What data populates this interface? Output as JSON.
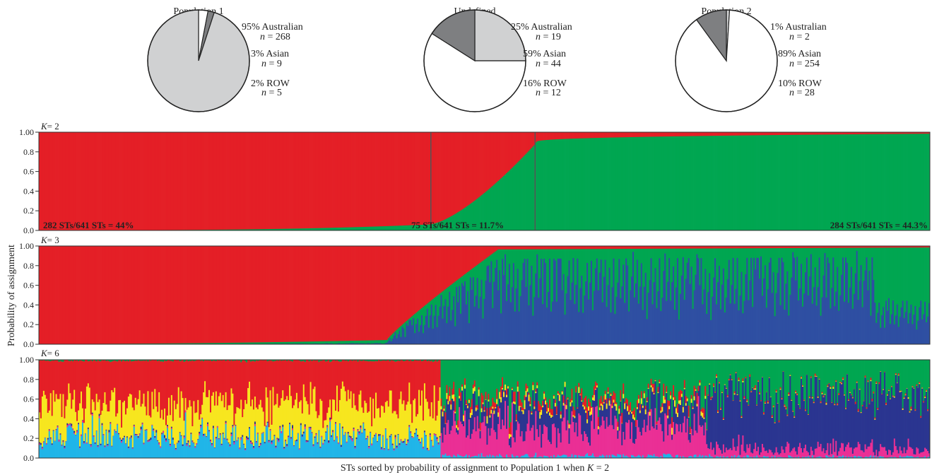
{
  "colors": {
    "australian": "#d0d1d2",
    "asian": "#ffffff",
    "row": "#7e7f81",
    "pop1": "#e41f26",
    "pop2": "#00a651",
    "blue": "#2e4fa2",
    "cyan": "#20b5e8",
    "yellow": "#f7e61f",
    "magenta": "#ea2f95",
    "navy": "#2a3590",
    "gray": "#8a8c8e"
  },
  "pies": [
    {
      "title": "Population 1",
      "slices": [
        {
          "label": "95% Australian",
          "n": "= 268",
          "percent": 95,
          "category": "Australian"
        },
        {
          "label": "3% Asian",
          "n": "= 9",
          "percent": 3,
          "category": "Asian"
        },
        {
          "label": "2% ROW",
          "n": "= 5",
          "percent": 2,
          "category": "ROW"
        }
      ]
    },
    {
      "title": "Undefined",
      "slices": [
        {
          "label": "25% Australian",
          "n": "= 19",
          "percent": 25,
          "category": "Australian"
        },
        {
          "label": "59% Asian",
          "n": "= 44",
          "percent": 59,
          "category": "Asian"
        },
        {
          "label": "16% ROW",
          "n": "= 12",
          "percent": 16,
          "category": "ROW"
        }
      ]
    },
    {
      "title": "Population 2",
      "slices": [
        {
          "label": "1% Australian",
          "n": "= 2",
          "percent": 1,
          "category": "Australian"
        },
        {
          "label": "89% Asian",
          "n": "= 254",
          "percent": 89,
          "category": "Asian"
        },
        {
          "label": "10% ROW",
          "n": "= 28",
          "percent": 10,
          "category": "ROW"
        }
      ]
    }
  ],
  "n_symbol": "n",
  "k_prefix": "K",
  "y_ticks": [
    "0.0",
    "0.2",
    "0.4",
    "0.6",
    "0.8",
    "1.00"
  ],
  "ylabel": "Probability of assignment",
  "xlabel_prefix": "STs sorted by probability of assignment to Population 1 when",
  "xlabel_suffix": "= 2",
  "chart_data": [
    {
      "type": "bar",
      "panel": "K= 2",
      "k": 2,
      "n_sts": 641,
      "stacked": true,
      "ylim": [
        0,
        1
      ],
      "series": [
        {
          "name": "",
          "color": "#e41f26",
          "sorted_values_sample": [
            1.0,
            0.99,
            0.97,
            0.95,
            0.92,
            0.7,
            0.5,
            0.3,
            0.1,
            0.07,
            0.05,
            0.04,
            0.03,
            0.02
          ]
        },
        {
          "name": "",
          "color": "#00a651",
          "sorted_values_sample": [
            0.0,
            0.01,
            0.03,
            0.05,
            0.08,
            0.3,
            0.5,
            0.7,
            0.9,
            0.93,
            0.95,
            0.96,
            0.97,
            0.98
          ]
        }
      ],
      "groups": [
        {
          "label": "282 STs/641 STs = 44%",
          "count": 282
        },
        {
          "label": "75 STs/641 STs = 11.7%",
          "count": 75
        },
        {
          "label": "284 STs/641 STs = 44.3%",
          "count": 284
        }
      ]
    },
    {
      "type": "bar",
      "panel": "K= 3",
      "k": 3,
      "n_sts": 641,
      "stacked": true,
      "ylim": [
        0,
        1
      ],
      "series": [
        {
          "name": "",
          "color": "#e41f26"
        },
        {
          "name": "",
          "color": "#00a651"
        },
        {
          "name": "",
          "color": "#2e4fa2"
        }
      ],
      "note": "red ~1.0 for first ~270 STs, declining to ~0.03 by ST ~330; remaining split between blue and green"
    },
    {
      "type": "bar",
      "panel": "K= 6",
      "k": 6,
      "n_sts": 641,
      "stacked": true,
      "ylim": [
        0,
        1
      ],
      "series": [
        {
          "name": "",
          "color": "#20b5e8"
        },
        {
          "name": "",
          "color": "#f7e61f"
        },
        {
          "name": "",
          "color": "#e41f26"
        },
        {
          "name": "",
          "color": "#ea2f95"
        },
        {
          "name": "",
          "color": "#00a651"
        },
        {
          "name": "",
          "color": "#2a3590"
        }
      ]
    }
  ]
}
